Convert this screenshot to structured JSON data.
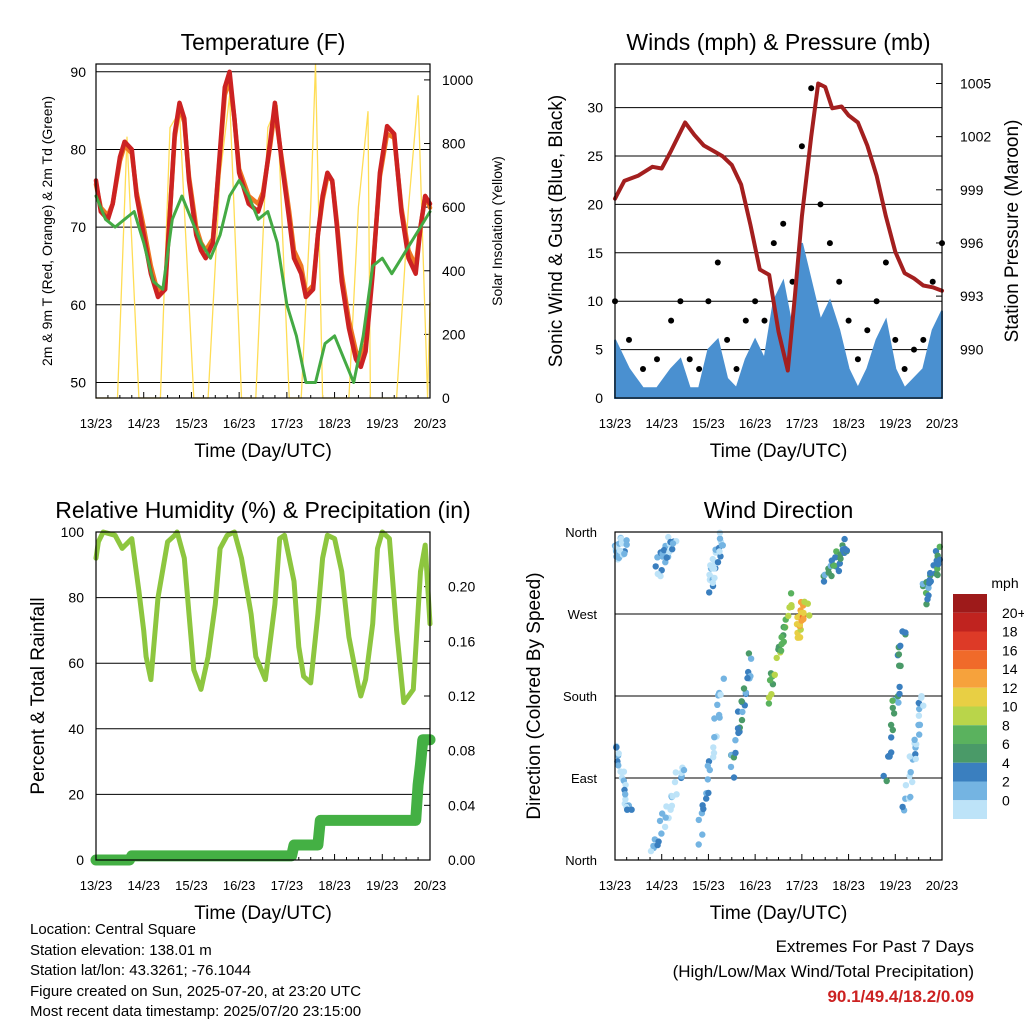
{
  "figure_data": {
    "x_tick_labels": [
      "13/23",
      "14/23",
      "15/23",
      "16/23",
      "17/23",
      "18/23",
      "19/23",
      "20/23"
    ],
    "x_axis_title": "Time (Day/UTC)"
  },
  "chart_data": [
    {
      "id": "temperature",
      "type": "line",
      "title": "Temperature (F)",
      "xlabel": "Time (Day/UTC)",
      "ylabel": "2m & 9m T (Red, Orange) & 2m Td (Green)",
      "y2label": "Solar Insolation (Yellow)",
      "ylim": [
        48,
        91
      ],
      "y2lim": [
        0,
        1050
      ],
      "yticks": [
        50,
        60,
        70,
        80,
        90
      ],
      "y2ticks": [
        0,
        200,
        400,
        600,
        800,
        1000
      ],
      "series": [
        {
          "name": "2m T",
          "color": "#cc2222",
          "axis": "left",
          "x": [
            0,
            0.1,
            0.25,
            0.35,
            0.5,
            0.6,
            0.75,
            0.85,
            1.0,
            1.15,
            1.3,
            1.45,
            1.55,
            1.65,
            1.75,
            1.85,
            1.95,
            2.1,
            2.2,
            2.3,
            2.45,
            2.6,
            2.7,
            2.8,
            2.9,
            3.0,
            3.2,
            3.4,
            3.5,
            3.65,
            3.75,
            3.9,
            4.05,
            4.15,
            4.3,
            4.4,
            4.55,
            4.65,
            4.75,
            4.85,
            4.95,
            5.05,
            5.15,
            5.3,
            5.45,
            5.55,
            5.65,
            5.8,
            5.95,
            6.1,
            6.25,
            6.4,
            6.55,
            6.7,
            6.8,
            6.9,
            7.0
          ],
          "y": [
            76,
            72,
            71,
            73,
            79,
            81,
            80,
            74,
            69,
            64,
            61,
            62,
            72,
            82,
            86,
            84,
            76,
            69,
            67,
            66,
            68,
            80,
            88,
            90,
            84,
            77,
            73,
            72,
            74,
            81,
            86,
            78,
            71,
            66,
            64,
            61,
            62,
            69,
            74,
            77,
            76,
            70,
            63,
            57,
            53,
            52,
            54,
            64,
            77,
            83,
            82,
            72,
            66,
            64,
            70,
            74,
            73
          ]
        },
        {
          "name": "9m T",
          "color": "#ee7722",
          "axis": "left",
          "x": [
            0,
            0.1,
            0.25,
            0.35,
            0.5,
            0.6,
            0.75,
            0.85,
            1.0,
            1.15,
            1.3,
            1.45,
            1.55,
            1.65,
            1.75,
            1.85,
            1.95,
            2.1,
            2.2,
            2.3,
            2.45,
            2.6,
            2.7,
            2.8,
            2.9,
            3.0,
            3.2,
            3.4,
            3.5,
            3.65,
            3.75,
            3.9,
            4.05,
            4.15,
            4.3,
            4.4,
            4.55,
            4.65,
            4.75,
            4.85,
            4.95,
            5.05,
            5.15,
            5.3,
            5.45,
            5.55,
            5.65,
            5.8,
            5.95,
            6.1,
            6.25,
            6.4,
            6.55,
            6.7,
            6.8,
            6.9,
            7.0
          ],
          "y": [
            75.5,
            72.5,
            71.5,
            73,
            78.5,
            80.5,
            79.5,
            74.5,
            70,
            65,
            61.5,
            62.5,
            72,
            81.5,
            85.5,
            83.5,
            76.5,
            70,
            68,
            67,
            68.5,
            79.5,
            87,
            89,
            84,
            77.5,
            74,
            73,
            74.5,
            80.5,
            85,
            78.5,
            72,
            67,
            65,
            61.5,
            62.5,
            69,
            73.5,
            76.5,
            76,
            70.5,
            64,
            58,
            54,
            53,
            55,
            64.5,
            76.5,
            82,
            81.5,
            72.5,
            67,
            65,
            70,
            74,
            72.5
          ]
        },
        {
          "name": "2m Td",
          "color": "#44aa44",
          "axis": "left",
          "x": [
            0,
            0.2,
            0.4,
            0.6,
            0.8,
            1.0,
            1.2,
            1.4,
            1.6,
            1.8,
            2.0,
            2.2,
            2.4,
            2.6,
            2.8,
            3.0,
            3.2,
            3.4,
            3.6,
            3.8,
            4.0,
            4.2,
            4.4,
            4.6,
            4.8,
            5.0,
            5.2,
            5.4,
            5.6,
            5.8,
            6.0,
            6.2,
            6.4,
            6.6,
            6.8,
            7.0
          ],
          "y": [
            74,
            71,
            70,
            71,
            72,
            68,
            63,
            62,
            71,
            74,
            71,
            68,
            66,
            69,
            74,
            76,
            74,
            71,
            72,
            68,
            60,
            56,
            50,
            50,
            55,
            56,
            53,
            50,
            56,
            65,
            66,
            64,
            66,
            68,
            70,
            72
          ]
        },
        {
          "name": "Solar Insolation",
          "color": "#ffdd55",
          "axis": "right",
          "x": [
            0,
            0.45,
            0.65,
            0.9,
            1.1,
            1.35,
            1.55,
            1.75,
            2.05,
            2.35,
            2.6,
            2.8,
            3.05,
            3.35,
            3.6,
            3.8,
            4.05,
            4.3,
            4.5,
            4.6,
            4.75,
            5.05,
            5.3,
            5.5,
            5.7,
            5.75,
            6.0,
            6.3,
            6.55,
            6.75,
            6.95,
            7.0
          ],
          "y": [
            0,
            0,
            820,
            0,
            0,
            0,
            850,
            900,
            0,
            0,
            700,
            950,
            0,
            0,
            850,
            920,
            0,
            0,
            600,
            1050,
            0,
            0,
            0,
            600,
            900,
            0,
            0,
            0,
            600,
            950,
            0,
            300
          ]
        }
      ]
    },
    {
      "id": "winds",
      "type": "line",
      "title": "Winds (mph) & Pressure (mb)",
      "xlabel": "Time (Day/UTC)",
      "ylabel": "Sonic Wind & Gust (Blue, Black)",
      "y2label": "Station Pressure (Maroon)",
      "ylim": [
        0,
        34.5
      ],
      "y2lim": [
        987.25,
        1006.1
      ],
      "yticks": [
        0,
        5,
        10,
        15,
        20,
        25,
        30
      ],
      "y2ticks": [
        990,
        993,
        996,
        999,
        1002,
        1005
      ],
      "series": [
        {
          "name": "Sonic Wind",
          "color": "#4a90d0",
          "axis": "left",
          "x": [
            0,
            0.3,
            0.6,
            0.9,
            1.2,
            1.4,
            1.6,
            1.8,
            2.0,
            2.2,
            2.4,
            2.6,
            2.8,
            3.0,
            3.2,
            3.4,
            3.6,
            3.8,
            4.0,
            4.2,
            4.4,
            4.6,
            4.8,
            5.0,
            5.2,
            5.4,
            5.6,
            5.8,
            6.0,
            6.2,
            6.4,
            6.6,
            6.8,
            7.0
          ],
          "y": [
            6,
            3,
            1,
            1,
            3,
            4,
            1,
            1,
            5,
            6,
            2,
            1,
            4,
            6,
            4,
            10,
            12,
            7,
            16,
            12,
            8,
            10,
            7,
            3,
            1,
            3,
            6,
            8,
            3,
            1,
            2,
            3,
            7,
            9
          ]
        },
        {
          "name": "Gust",
          "color": "#000000",
          "axis": "left",
          "x": [
            0,
            0.3,
            0.6,
            0.9,
            1.2,
            1.4,
            1.6,
            1.8,
            2.0,
            2.2,
            2.4,
            2.6,
            2.8,
            3.0,
            3.2,
            3.4,
            3.6,
            3.8,
            4.0,
            4.2,
            4.4,
            4.6,
            4.8,
            5.0,
            5.2,
            5.4,
            5.6,
            5.8,
            6.0,
            6.2,
            6.4,
            6.6,
            6.8,
            7.0
          ],
          "y": [
            10,
            6,
            3,
            4,
            8,
            10,
            4,
            3,
            10,
            14,
            6,
            3,
            8,
            10,
            8,
            16,
            18,
            12,
            26,
            32,
            20,
            16,
            12,
            8,
            4,
            7,
            10,
            14,
            6,
            3,
            5,
            6,
            12,
            16
          ]
        },
        {
          "name": "Station Pressure",
          "color": "#a31f1f",
          "axis": "right",
          "x": [
            0,
            0.2,
            0.5,
            0.8,
            1.0,
            1.2,
            1.5,
            1.7,
            1.9,
            2.1,
            2.3,
            2.5,
            2.7,
            2.9,
            3.1,
            3.3,
            3.5,
            3.7,
            3.85,
            4.0,
            4.2,
            4.35,
            4.5,
            4.65,
            4.85,
            5.0,
            5.2,
            5.4,
            5.6,
            5.8,
            6.0,
            6.2,
            6.4,
            6.6,
            6.8,
            7.0
          ],
          "y": [
            998.5,
            999.5,
            999.8,
            1000.3,
            1000.2,
            1001.2,
            1002.8,
            1002.1,
            1001.5,
            1001.2,
            1000.9,
            1000.4,
            999.3,
            997.0,
            994.5,
            994.2,
            991.0,
            988.8,
            993.0,
            997.5,
            1002.0,
            1005.0,
            1004.8,
            1003.6,
            1003.7,
            1003.2,
            1002.8,
            1001.5,
            999.8,
            997.5,
            995.5,
            994.3,
            994.0,
            993.6,
            993.5,
            993.3
          ]
        }
      ]
    },
    {
      "id": "humidity",
      "type": "line",
      "title": "Relative Humidity (%) & Precipitation (in)",
      "xlabel": "Time (Day/UTC)",
      "ylabel": "Percent & Total Rainfall",
      "ylim": [
        0,
        100
      ],
      "y2lim": [
        0,
        0.24
      ],
      "yticks": [
        0,
        20,
        40,
        60,
        80,
        100
      ],
      "y2ticks": [
        "0.00",
        "0.04",
        "0.08",
        "0.12",
        "0.16",
        "0.20"
      ],
      "series": [
        {
          "name": "Relative Humidity",
          "color": "#8dc63f",
          "axis": "left",
          "x": [
            0,
            0.05,
            0.15,
            0.4,
            0.55,
            0.75,
            0.9,
            1.0,
            1.05,
            1.15,
            1.3,
            1.5,
            1.65,
            1.7,
            1.85,
            1.95,
            2.05,
            2.2,
            2.35,
            2.5,
            2.6,
            2.75,
            2.9,
            3.05,
            3.25,
            3.35,
            3.55,
            3.75,
            3.85,
            3.95,
            4.15,
            4.25,
            4.35,
            4.5,
            4.65,
            4.75,
            4.85,
            5.0,
            5.15,
            5.3,
            5.5,
            5.55,
            5.65,
            5.8,
            5.9,
            6.0,
            6.15,
            6.3,
            6.45,
            6.65,
            6.8,
            6.9,
            7.0
          ],
          "y": [
            92,
            97,
            100,
            99,
            95,
            98,
            82,
            70,
            62,
            55,
            80,
            97,
            99,
            100,
            92,
            75,
            58,
            52,
            62,
            78,
            95,
            99,
            100,
            92,
            75,
            62,
            55,
            78,
            98,
            99,
            85,
            65,
            56,
            54,
            75,
            92,
            99,
            98,
            88,
            68,
            53,
            50,
            55,
            72,
            95,
            100,
            98,
            70,
            48,
            52,
            88,
            96,
            72
          ]
        },
        {
          "name": "Total Precipitation",
          "color": "#44b044",
          "axis": "right",
          "x": [
            0,
            0.7,
            0.75,
            4.1,
            4.15,
            4.65,
            4.7,
            6.7,
            6.75,
            6.8,
            6.85,
            7.0
          ],
          "y": [
            0.0,
            0.0,
            0.003,
            0.003,
            0.011,
            0.011,
            0.029,
            0.029,
            0.055,
            0.07,
            0.088,
            0.088
          ]
        }
      ]
    },
    {
      "id": "wind_direction",
      "type": "scatter",
      "title": "Wind Direction",
      "xlabel": "Time (Day/UTC)",
      "ylabel": "Direction (Colored By Speed)",
      "ylim": [
        0,
        360
      ],
      "yticks": [
        "North",
        "East",
        "South",
        "West",
        "North"
      ],
      "colorbar": {
        "title": "mph",
        "labels": [
          "20+",
          "18",
          "16",
          "14",
          "12",
          "10",
          "8",
          "6",
          "4",
          "2",
          "0"
        ],
        "colors": [
          "#9e1a1a",
          "#c0231f",
          "#dd3a27",
          "#f06a2a",
          "#f6a23c",
          "#e8cf44",
          "#b9d54a",
          "#5ab25e",
          "#4a9a68",
          "#3a7fbf",
          "#74b4e2",
          "#bde3f8"
        ]
      },
      "direction_tracks": [
        {
          "x": [
            0.0,
            0.3
          ],
          "y": [
            140,
            45
          ],
          "speed": 3
        },
        {
          "x": [
            0.8,
            1.5
          ],
          "y": [
            10,
            110
          ],
          "speed": 2
        },
        {
          "x": [
            1.8,
            2.3
          ],
          "y": [
            20,
            200
          ],
          "speed": 3
        },
        {
          "x": [
            2.5,
            2.9
          ],
          "y": [
            100,
            220
          ],
          "speed": 5
        },
        {
          "x": [
            3.3,
            3.8
          ],
          "y": [
            180,
            290
          ],
          "speed": 10
        },
        {
          "x": [
            3.9,
            4.1
          ],
          "y": [
            250,
            280
          ],
          "speed": 14
        },
        {
          "x": [
            4.5,
            5.0
          ],
          "y": [
            310,
            350
          ],
          "speed": 6
        },
        {
          "x": [
            5.8,
            6.2
          ],
          "y": [
            90,
            260
          ],
          "speed": 6
        },
        {
          "x": [
            6.2,
            6.6
          ],
          "y": [
            60,
            180
          ],
          "speed": 2
        },
        {
          "x": [
            6.6,
            7.0
          ],
          "y": [
            290,
            340
          ],
          "speed": 6
        },
        {
          "x": [
            0.0,
            0.2
          ],
          "y": [
            330,
            350
          ],
          "speed": 2
        },
        {
          "x": [
            0.9,
            1.3
          ],
          "y": [
            320,
            355
          ],
          "speed": 3
        },
        {
          "x": [
            2.0,
            2.3
          ],
          "y": [
            300,
            350
          ],
          "speed": 3
        }
      ]
    }
  ],
  "station_info": {
    "location": "Location: Central Square",
    "elevation": "Station elevation: 138.01 m",
    "latlon": "Station lat/lon: 43.3261; -76.1044",
    "created": "Figure created on Sun, 2025-07-20, at 23:20 UTC",
    "latest": "Most recent data timestamp: 2025/07/20 23:15:00"
  },
  "extremes": {
    "title": "Extremes For Past 7 Days",
    "subtitle": "(High/Low/Max Wind/Total Precipitation)",
    "values": "90.1/49.4/18.2/0.09"
  }
}
